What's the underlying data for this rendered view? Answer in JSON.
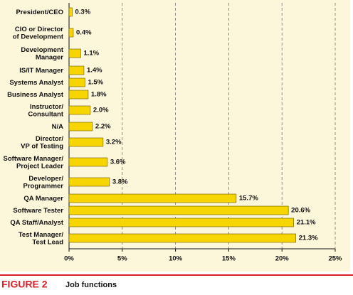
{
  "chart_data": {
    "type": "bar",
    "orientation": "horizontal",
    "categories": [
      [
        "President/CEO"
      ],
      [
        "CIO or Director",
        "of Development"
      ],
      [
        "Development",
        "Manager"
      ],
      [
        "IS/IT Manager"
      ],
      [
        "Systems Analyst"
      ],
      [
        "Business Analyst"
      ],
      [
        "Instructor/",
        "Consultant"
      ],
      [
        "N/A"
      ],
      [
        "Director/",
        "VP of Testing"
      ],
      [
        "Software Manager/",
        "Project Leader"
      ],
      [
        "Developer/",
        "Programmer"
      ],
      [
        "QA Manager"
      ],
      [
        "Software Tester"
      ],
      [
        "QA Staff/Analyst"
      ],
      [
        "Test Manager/",
        "Test Lead"
      ]
    ],
    "values": [
      0.3,
      0.4,
      1.1,
      1.4,
      1.5,
      1.8,
      2.0,
      2.2,
      3.2,
      3.6,
      3.8,
      15.7,
      20.6,
      21.1,
      21.3
    ],
    "value_labels": [
      "0.3%",
      "0.4%",
      "1.1%",
      "1.4%",
      "1.5%",
      "1.8%",
      "2.0%",
      "2.2%",
      "3.2%",
      "3.6%",
      "3.8%",
      "15.7%",
      "20.6%",
      "21.1%",
      "21.3%"
    ],
    "color": "#f6d500",
    "xlim": [
      0,
      25
    ],
    "xticks": [
      {
        "value": 0,
        "label": "0%"
      },
      {
        "value": 5,
        "label": "5%"
      },
      {
        "value": 10,
        "label": "10%"
      },
      {
        "value": 15,
        "label": "15%"
      },
      {
        "value": 20,
        "label": "20%"
      },
      {
        "value": 25,
        "label": "25%"
      }
    ],
    "grid": true,
    "figure_label": "FIGURE 2",
    "caption": "Job functions"
  }
}
